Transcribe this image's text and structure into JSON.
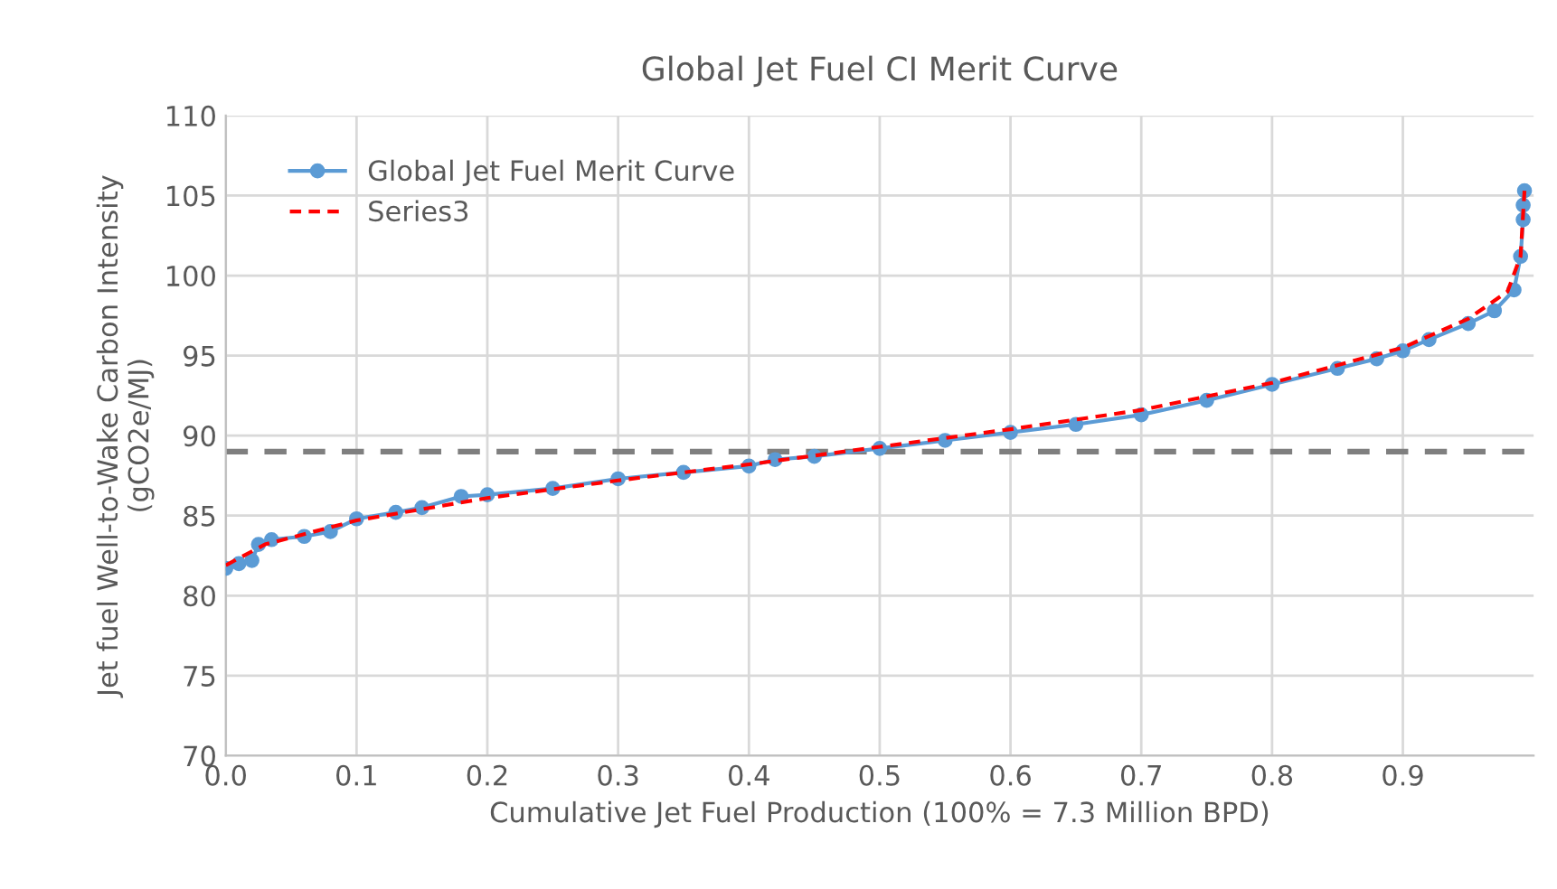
{
  "chart_data": {
    "type": "line",
    "title": "Global Jet Fuel CI Merit Curve",
    "xlabel": "Cumulative Jet Fuel Production (100% = 7.3 Million BPD)",
    "ylabel": "Jet fuel Well-to-Wake Carbon Intensity\n(gCO2e/MJ)",
    "xlim": [
      0,
      1.0
    ],
    "xticks": [
      {
        "value": 0,
        "label": "0.0"
      },
      0.1,
      0.2,
      0.3,
      0.4,
      0.5,
      0.6,
      0.7,
      0.8,
      0.9
    ],
    "ylim": [
      70,
      110
    ],
    "yticks": [
      70,
      75,
      80,
      85,
      90,
      95,
      100,
      105,
      110
    ],
    "grid": true,
    "legend": "top left",
    "series": [
      {
        "name": "Global Jet Fuel Merit Curve",
        "color": "#5b9bd5",
        "marker": "circle",
        "line_style": "solid",
        "x": [
          0.0,
          0.01,
          0.02,
          0.025,
          0.035,
          0.06,
          0.08,
          0.1,
          0.13,
          0.15,
          0.18,
          0.2,
          0.25,
          0.3,
          0.35,
          0.4,
          0.42,
          0.45,
          0.5,
          0.55,
          0.6,
          0.65,
          0.7,
          0.75,
          0.8,
          0.85,
          0.88,
          0.9,
          0.92,
          0.95,
          0.97,
          0.985,
          0.99,
          0.992,
          0.992,
          0.993
        ],
        "values": [
          81.7,
          82.0,
          82.2,
          83.2,
          83.5,
          83.7,
          84.0,
          84.8,
          85.2,
          85.5,
          86.2,
          86.3,
          86.7,
          87.3,
          87.7,
          88.1,
          88.5,
          88.7,
          89.2,
          89.7,
          90.2,
          90.7,
          91.3,
          92.2,
          93.2,
          94.2,
          94.8,
          95.3,
          96.0,
          97.0,
          97.8,
          99.1,
          101.2,
          103.5,
          104.4,
          105.3
        ]
      },
      {
        "name": "Series3",
        "color": "#ff0000",
        "marker": "none",
        "line_style": "dashed",
        "x": [
          0.0,
          0.03,
          0.1,
          0.2,
          0.3,
          0.4,
          0.5,
          0.6,
          0.7,
          0.8,
          0.9,
          0.95,
          0.98,
          0.99,
          0.993
        ],
        "values": [
          81.9,
          83.2,
          84.7,
          86.1,
          87.2,
          88.2,
          89.3,
          90.4,
          91.6,
          93.3,
          95.5,
          97.3,
          99.0,
          101.2,
          105.3
        ]
      }
    ],
    "ref_lines": [
      {
        "axis": "y",
        "value": 89,
        "color": "#7f7f7f",
        "line_style": "dashed"
      }
    ]
  }
}
